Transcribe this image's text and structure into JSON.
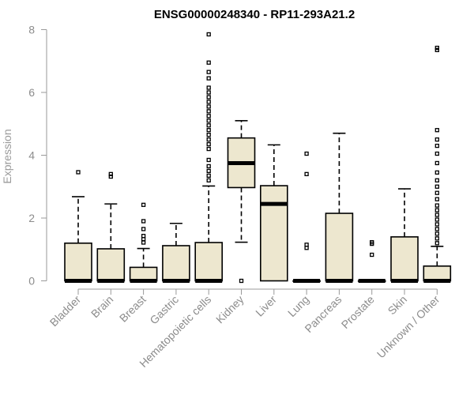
{
  "chart_data": {
    "type": "box",
    "title": "ENSG00000248340 - RP11-293A21.2",
    "xlabel": "",
    "ylabel": "Expression",
    "ylim": [
      0,
      8
    ],
    "yticks": [
      0,
      2,
      4,
      6,
      8
    ],
    "box_color": "#ede7cf",
    "categories": [
      "Bladder",
      "Brain",
      "Breast",
      "Gastric",
      "Hematopoietic cells",
      "Kidney",
      "Liver",
      "Lung",
      "Pancreas",
      "Prostate",
      "Skin",
      "Unknown / Other"
    ],
    "boxes": [
      {
        "name": "Bladder",
        "whisker_low": 0,
        "q1": 0,
        "median": 0,
        "q3": 1.2,
        "whisker_high": 2.68,
        "outliers": [
          3.46
        ]
      },
      {
        "name": "Brain",
        "whisker_low": 0,
        "q1": 0,
        "median": 0,
        "q3": 1.02,
        "whisker_high": 2.45,
        "outliers": [
          3.32,
          3.4
        ]
      },
      {
        "name": "Breast",
        "whisker_low": 0,
        "q1": 0,
        "median": 0,
        "q3": 0.43,
        "whisker_high": 1.03,
        "outliers": [
          1.22,
          1.33,
          1.43,
          1.65,
          1.9,
          2.42
        ]
      },
      {
        "name": "Gastric",
        "whisker_low": 0,
        "q1": 0,
        "median": 0,
        "q3": 1.12,
        "whisker_high": 1.83,
        "outliers": []
      },
      {
        "name": "Hematopoietic cells",
        "whisker_low": 0,
        "q1": 0,
        "median": 0,
        "q3": 1.22,
        "whisker_high": 3.02,
        "outliers": [
          3.2,
          3.35,
          3.5,
          3.65,
          3.85,
          4.2,
          4.35,
          4.5,
          4.65,
          4.8,
          4.95,
          5.1,
          5.25,
          5.4,
          5.55,
          5.7,
          5.85,
          6.0,
          6.15,
          6.45,
          6.65,
          6.95,
          7.85
        ]
      },
      {
        "name": "Kidney",
        "whisker_low": 1.23,
        "q1": 2.97,
        "median": 3.75,
        "q3": 4.55,
        "whisker_high": 5.1,
        "outliers": [
          0.0
        ]
      },
      {
        "name": "Liver",
        "whisker_low": 0,
        "q1": 0,
        "median": 2.45,
        "q3": 3.03,
        "whisker_high": 4.33,
        "outliers": []
      },
      {
        "name": "Lung",
        "whisker_low": 0,
        "q1": 0,
        "median": 0,
        "q3": 0,
        "whisker_high": 0,
        "outliers": [
          1.05,
          1.15,
          3.4,
          4.05
        ]
      },
      {
        "name": "Pancreas",
        "whisker_low": 0,
        "q1": 0,
        "median": 0,
        "q3": 2.15,
        "whisker_high": 4.7,
        "outliers": []
      },
      {
        "name": "Prostate",
        "whisker_low": 0,
        "q1": 0,
        "median": 0,
        "q3": 0,
        "whisker_high": 0,
        "outliers": [
          0.83,
          1.18,
          1.23
        ]
      },
      {
        "name": "Skin",
        "whisker_low": 0,
        "q1": 0,
        "median": 0,
        "q3": 1.4,
        "whisker_high": 2.93,
        "outliers": []
      },
      {
        "name": "Unknown / Other",
        "whisker_low": 0,
        "q1": 0,
        "median": 0,
        "q3": 0.47,
        "whisker_high": 1.1,
        "outliers": [
          1.2,
          1.35,
          1.5,
          1.65,
          1.8,
          1.95,
          2.1,
          2.25,
          2.4,
          2.6,
          2.8,
          3.0,
          3.2,
          3.45,
          3.75,
          4.05,
          4.3,
          4.5,
          4.8,
          7.35,
          7.42
        ]
      }
    ]
  }
}
